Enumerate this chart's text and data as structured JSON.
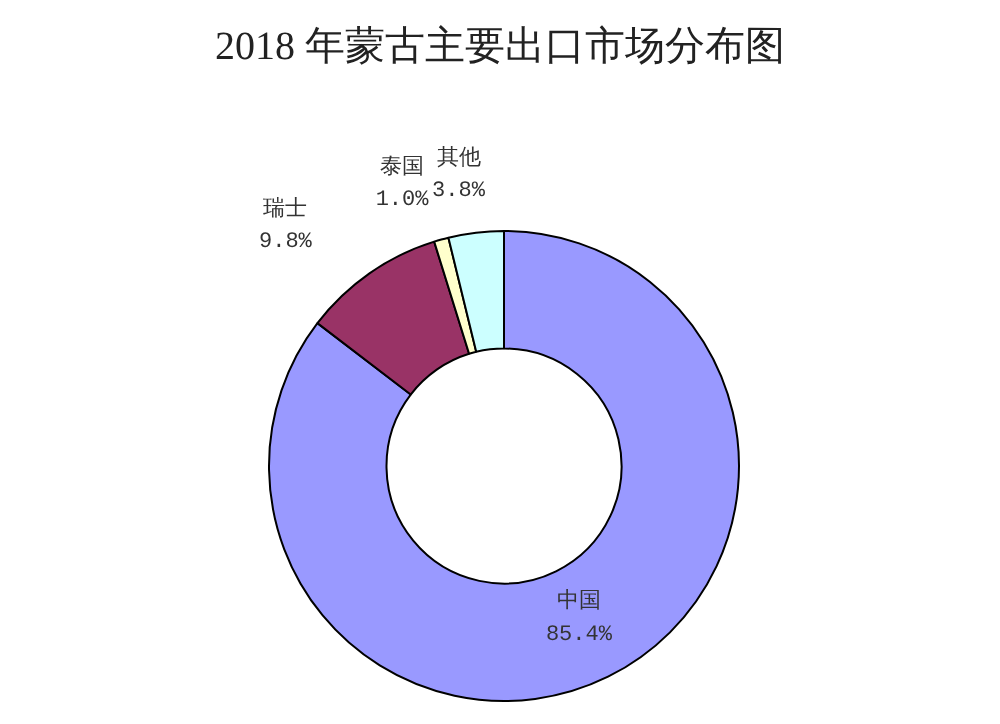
{
  "chart_data": {
    "type": "donut",
    "title": "2018 年蒙古主要出口市场分布图",
    "categories": [
      "中国",
      "瑞士",
      "泰国",
      "其他"
    ],
    "values": [
      85.4,
      9.8,
      1.0,
      3.8
    ],
    "colors": [
      "#9999ff",
      "#993366",
      "#ffffcc",
      "#ccffff"
    ],
    "value_labels": [
      "85.4%",
      "9.8%",
      "1.0%",
      "3.8%"
    ],
    "legend": false
  }
}
